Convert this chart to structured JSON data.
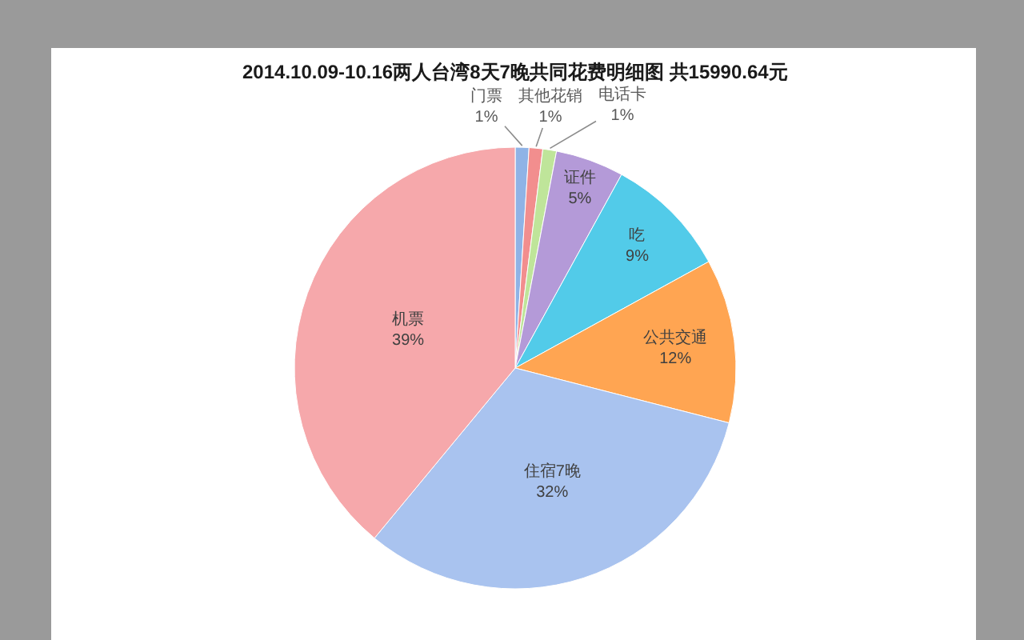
{
  "chart_data": {
    "type": "pie",
    "title": "2014.10.09-10.16两人台湾8天7晚共同花费明细图 共15990.64元",
    "categories": [
      "门票",
      "其他花销",
      "电话卡",
      "证件",
      "吃",
      "公共交通",
      "住宿7晚",
      "机票"
    ],
    "values": [
      1,
      1,
      1,
      5,
      9,
      12,
      32,
      39
    ],
    "value_labels": [
      "1%",
      "1%",
      "1%",
      "5%",
      "9%",
      "12%",
      "32%",
      "39%"
    ],
    "colors": [
      "#8fb3e6",
      "#f28e8e",
      "#bfe59a",
      "#b49ad8",
      "#52cbe9",
      "#ffa552",
      "#a9c3ef",
      "#f6a8ab"
    ]
  }
}
